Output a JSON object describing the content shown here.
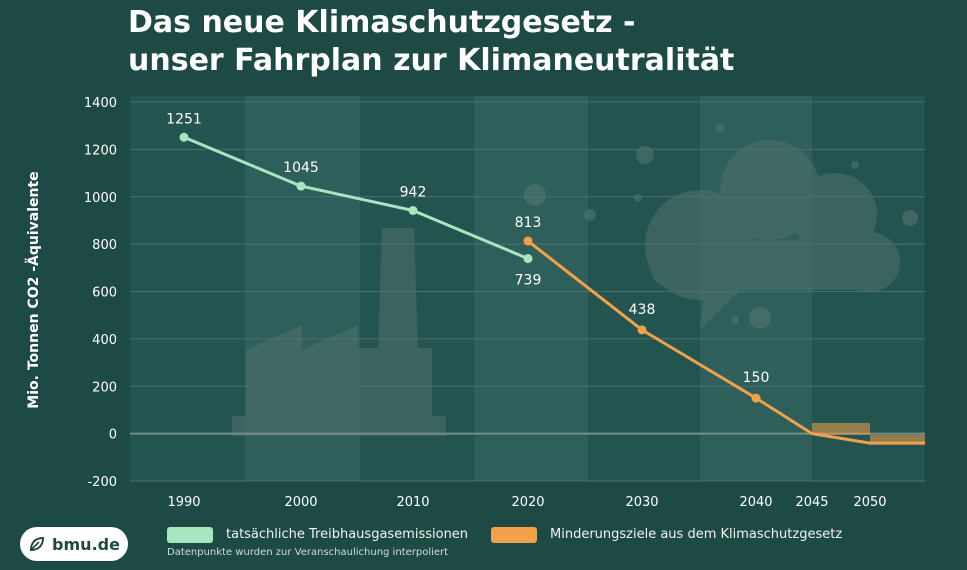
{
  "title_line1": "Das neue Klimaschutzgesetz -",
  "title_line2": "unser Fahrplan zur Klimaneutralität",
  "logo_text": "bmu.de",
  "footnote": "Datenpunkte wurden zur Veranschaulichung interpoliert",
  "colors": {
    "background": "#1e4a46",
    "actual": "#a8e6c1",
    "target": "#f2a14a"
  },
  "chart_data": {
    "type": "line",
    "ylabel": "Mio. Tonnen CO2 -Äquivalente",
    "ylim": [
      -200,
      1400
    ],
    "yticks": [
      -200,
      0,
      200,
      400,
      600,
      800,
      1000,
      1200,
      1400
    ],
    "xticks": [
      1990,
      2000,
      2010,
      2020,
      2030,
      2040,
      2045,
      2050
    ],
    "grid": true,
    "series": [
      {
        "name": "tatsächliche Treibhausgasemissionen",
        "color": "#a8e6c1",
        "points": [
          {
            "x": 1990,
            "y": 1251,
            "label": "1251"
          },
          {
            "x": 2000,
            "y": 1045,
            "label": "1045"
          },
          {
            "x": 2010,
            "y": 942,
            "label": "942"
          },
          {
            "x": 2020,
            "y": 739,
            "label": "739"
          }
        ]
      },
      {
        "name": "Minderungsziele aus dem Klimaschutzgesetz",
        "color": "#f2a14a",
        "points": [
          {
            "x": 2020,
            "y": 813,
            "label": "813"
          },
          {
            "x": 2030,
            "y": 438,
            "label": "438"
          },
          {
            "x": 2040,
            "y": 150,
            "label": "150"
          },
          {
            "x": 2045,
            "y": 0,
            "label": ""
          },
          {
            "x": 2050,
            "y": -40,
            "label": ""
          }
        ]
      }
    ],
    "legend": [
      {
        "label": "tatsächliche Treibhausgasemissionen",
        "color": "#a8e6c1"
      },
      {
        "label": "Minderungsziele aus dem Klimaschutzgesetz",
        "color": "#f2a14a"
      }
    ]
  }
}
